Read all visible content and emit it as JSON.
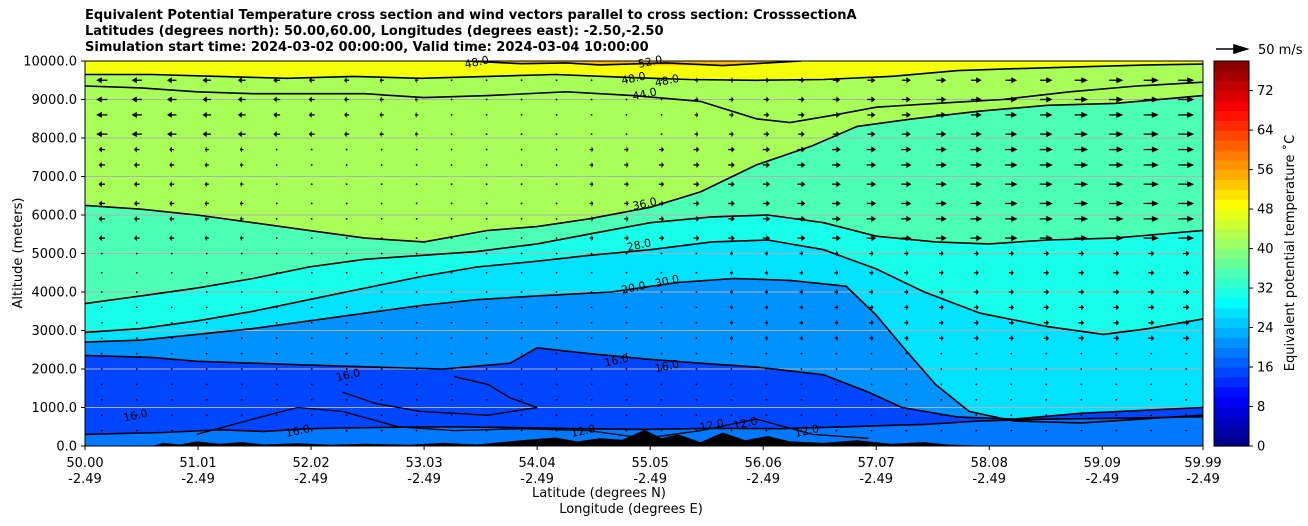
{
  "chart_data": {
    "type": "heatmap",
    "title_lines": [
      "Equivalent Potential Temperature cross section and wind vectors parallel to cross section: CrosssectionA",
      "Latitudes (degrees north): 50.00,60.00, Longitudes (degrees east): -2.50,-2.50",
      "Simulation start time: 2024-03-02 00:00:00, Valid time: 2024-03-04 10:00:00"
    ],
    "ylabel": "Altitude (meters)",
    "xlabel_lat": "Latitude (degrees N)",
    "xlabel_lon": "Longitude (degrees E)",
    "ylim": [
      0,
      10000
    ],
    "y_ticks": [
      0,
      1000,
      2000,
      3000,
      4000,
      5000,
      6000,
      7000,
      8000,
      9000,
      10000
    ],
    "y_tick_labels": [
      "0.0",
      "1000.0",
      "2000.0",
      "3000.0",
      "4000.0",
      "5000.0",
      "6000.0",
      "7000.0",
      "8000.0",
      "9000.0",
      "10000.0"
    ],
    "x_range": [
      50.0,
      59.99
    ],
    "x_ticks": [
      50.0,
      51.01,
      52.02,
      53.03,
      54.04,
      55.05,
      56.06,
      57.07,
      58.08,
      59.09,
      59.99
    ],
    "x_tick_lat": [
      "50.00",
      "51.01",
      "52.02",
      "53.03",
      "54.04",
      "55.05",
      "56.06",
      "57.07",
      "58.08",
      "59.09",
      "59.99"
    ],
    "x_tick_lon": [
      "-2.49",
      "-2.49",
      "-2.49",
      "-2.49",
      "-2.49",
      "-2.49",
      "-2.49",
      "-2.49",
      "-2.49",
      "-2.49",
      "-2.49"
    ],
    "grid": "horizontal",
    "colorbar": {
      "label": "Equivalent potential temperature ˚C",
      "range": [
        0,
        78
      ],
      "ticks": [
        0,
        8,
        16,
        24,
        32,
        40,
        48,
        56,
        64,
        72
      ],
      "tick_labels": [
        "0",
        "8",
        "16",
        "24",
        "32",
        "40",
        "48",
        "56",
        "64",
        "72"
      ],
      "colormap": "jet"
    },
    "wind_key": {
      "label": "50 m/s",
      "value": 50
    },
    "contour_labels": [
      {
        "text": "52.0",
        "x": 55.05,
        "y": 9990
      },
      {
        "text": "48.0",
        "x": 53.5,
        "y": 9980
      },
      {
        "text": "48.0",
        "x": 54.9,
        "y": 9560
      },
      {
        "text": "48.0",
        "x": 55.2,
        "y": 9500
      },
      {
        "text": "44.0",
        "x": 55.0,
        "y": 9150
      },
      {
        "text": "36.0",
        "x": 55.0,
        "y": 6300
      },
      {
        "text": "28.0",
        "x": 54.95,
        "y": 5230
      },
      {
        "text": "30.0",
        "x": 55.2,
        "y": 4290
      },
      {
        "text": "20.0",
        "x": 54.9,
        "y": 4120
      },
      {
        "text": "16.0",
        "x": 54.75,
        "y": 2230
      },
      {
        "text": "16.0",
        "x": 55.2,
        "y": 2080
      },
      {
        "text": "16.0",
        "x": 52.35,
        "y": 1850
      },
      {
        "text": "16.0",
        "x": 50.45,
        "y": 800
      },
      {
        "text": "16.0",
        "x": 51.9,
        "y": 400
      },
      {
        "text": "12.0",
        "x": 54.45,
        "y": 400
      },
      {
        "text": "12.0",
        "x": 55.6,
        "y": 550
      },
      {
        "text": "12.0",
        "x": 55.9,
        "y": 600
      },
      {
        "text": "12.0",
        "x": 56.45,
        "y": 400
      }
    ],
    "contour_levels": [
      12,
      16,
      20,
      28,
      30,
      36,
      44,
      48,
      52
    ],
    "wind_rows_m": [
      400,
      800,
      1200,
      1600,
      2000,
      2400,
      2800,
      3200,
      3600,
      4000,
      4500,
      5000,
      5400,
      5900,
      6300,
      6800,
      7300,
      7700,
      8100,
      8600,
      9000,
      9500
    ]
  }
}
